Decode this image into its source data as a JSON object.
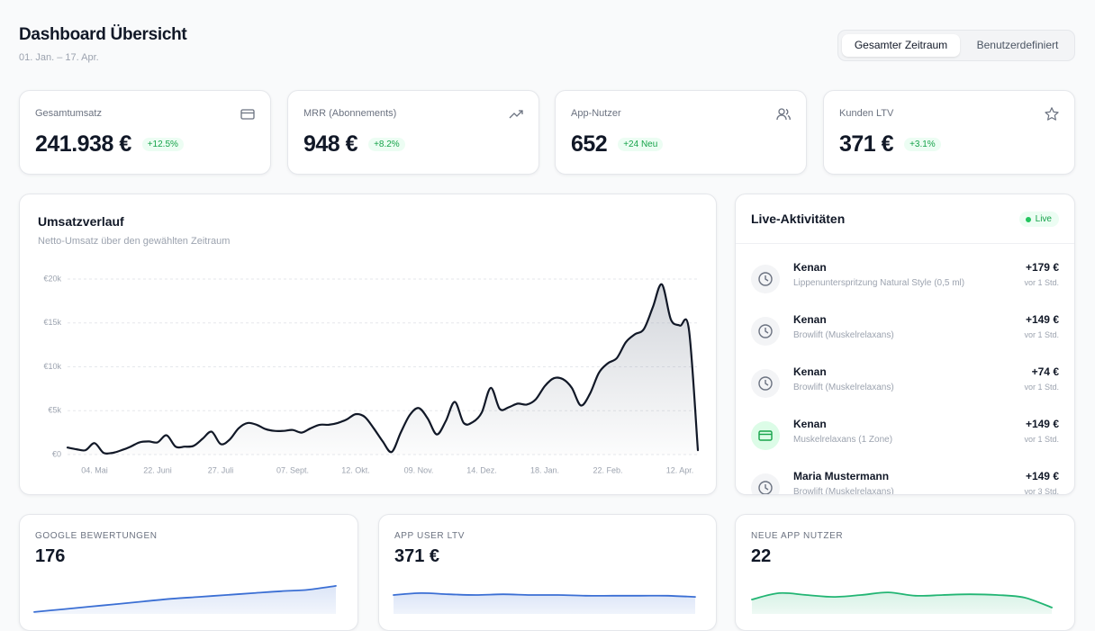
{
  "header": {
    "title": "Dashboard Übersicht",
    "subtitle": "01. Jan. – 17. Apr."
  },
  "toggle": {
    "options": [
      "Gesamter Zeitraum",
      "Benutzerdefiniert"
    ]
  },
  "kpis": [
    {
      "label": "Gesamtumsatz",
      "value": "241.938 €",
      "change": "+12.5%"
    },
    {
      "label": "MRR (Abonnements)",
      "value": "948 €",
      "change": "+8.2%"
    },
    {
      "label": "App-Nutzer",
      "value": "652",
      "change": "+24 Neu"
    },
    {
      "label": "Kunden LTV",
      "value": "371 €",
      "change": "+3.1%"
    }
  ],
  "chart_data": [
    {
      "type": "line",
      "title": "Umsatzverlauf",
      "subtitle": "Netto-Umsatz über den gewählten Zeitraum",
      "color": "#111827",
      "categories": [
        null,
        null,
        null,
        "04. Mai",
        null,
        null,
        null,
        null,
        null,
        null,
        "22. Juni",
        null,
        null,
        null,
        null,
        null,
        null,
        "27. Juli",
        null,
        null,
        null,
        null,
        null,
        null,
        null,
        "07. Sept.",
        null,
        null,
        null,
        null,
        null,
        null,
        "12. Okt.",
        null,
        null,
        null,
        null,
        null,
        null,
        "09. Nov.",
        null,
        null,
        null,
        null,
        null,
        null,
        "14. Dez.",
        null,
        null,
        null,
        null,
        null,
        null,
        "18. Jan.",
        null,
        null,
        null,
        null,
        null,
        null,
        "22. Feb.",
        null,
        null,
        null,
        null,
        null,
        null,
        null,
        "12. Apr.",
        null,
        null
      ],
      "values": [
        800,
        600,
        500,
        1300,
        200,
        200,
        500,
        900,
        1400,
        1500,
        1400,
        2200,
        900,
        900,
        1000,
        1800,
        2600,
        1200,
        1700,
        3000,
        3600,
        3400,
        2900,
        2700,
        2700,
        2800,
        2500,
        3000,
        3400,
        3400,
        3600,
        4000,
        4600,
        4300,
        3000,
        1500,
        300,
        2500,
        4500,
        5300,
        4100,
        2300,
        3800,
        6000,
        3600,
        3700,
        4800,
        7600,
        5200,
        5400,
        5800,
        5700,
        6300,
        7800,
        8700,
        8600,
        7600,
        5600,
        6900,
        9300,
        10400,
        11000,
        12800,
        13700,
        14300,
        16800,
        19400,
        15400,
        14700,
        14300,
        500
      ],
      "ylim": [
        0,
        20000
      ],
      "yticks": [
        {
          "value": 0,
          "label": "€0"
        },
        {
          "value": 5000,
          "label": "€5k"
        },
        {
          "value": 10000,
          "label": "€10k"
        },
        {
          "value": 15000,
          "label": "€15k"
        },
        {
          "value": 20000,
          "label": "€20k"
        }
      ],
      "grid": true
    },
    {
      "type": "area",
      "title": "GOOGLE BEWERTUNGEN",
      "value": "176",
      "color": "#3b6fd4",
      "values": [
        5,
        12,
        19,
        26,
        33,
        40,
        45,
        50,
        55,
        60,
        64,
        74
      ]
    },
    {
      "type": "area",
      "title": "APP USER LTV",
      "value": "371 €",
      "color": "#3b6fd4",
      "values": [
        50,
        55,
        52,
        50,
        52,
        50,
        50,
        48,
        48,
        48,
        48,
        45
      ]
    },
    {
      "type": "area",
      "title": "NEUE APP NUTZER",
      "value": "22",
      "color": "#22b573",
      "values": [
        38,
        55,
        50,
        45,
        50,
        57,
        48,
        50,
        52,
        50,
        43,
        17
      ]
    }
  ],
  "live": {
    "title": "Live-Aktivitäten",
    "badge": "Live",
    "items": [
      {
        "name": "Kenan",
        "description": "Lippenunterspritzung Natural Style (0,5 ml)",
        "amount": "+179 €",
        "time": "vor 1 Std."
      },
      {
        "name": "Kenan",
        "description": "Browlift (Muskelrelaxans)",
        "amount": "+149 €",
        "time": "vor 1 Std."
      },
      {
        "name": "Kenan",
        "description": "Browlift (Muskelrelaxans)",
        "amount": "+74 €",
        "time": "vor 1 Std."
      },
      {
        "name": "Kenan",
        "description": "Muskelrelaxans (1 Zone)",
        "amount": "+149 €",
        "time": "vor 1 Std."
      },
      {
        "name": "Maria Mustermann",
        "description": "Browlift (Muskelrelaxans)",
        "amount": "+149 €",
        "time": "vor 3 Std."
      }
    ]
  }
}
